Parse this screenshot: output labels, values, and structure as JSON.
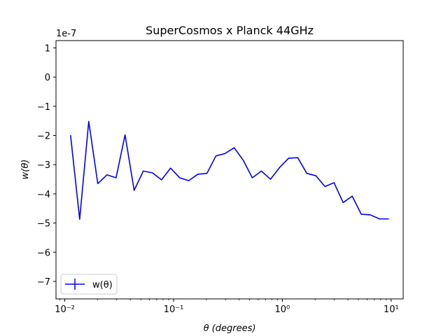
{
  "chart_data": {
    "type": "line",
    "title": "SuperCosmos x Planck 44GHz",
    "xlabel": "θ (degrees)",
    "ylabel": "w(θ)",
    "y_offset_text": "1e-7",
    "x_scale": "log",
    "xlim": [
      0.0083,
      12.9
    ],
    "ylim": [
      -7.6,
      1.25
    ],
    "x_ticks": [
      {
        "value": 0.01,
        "label": "10⁻²"
      },
      {
        "value": 0.1,
        "label": "10⁻¹"
      },
      {
        "value": 1,
        "label": "10⁰"
      },
      {
        "value": 10,
        "label": "10¹"
      }
    ],
    "y_ticks": [
      {
        "value": 1,
        "label": "1"
      },
      {
        "value": 0,
        "label": "0"
      },
      {
        "value": -1,
        "label": "−1"
      },
      {
        "value": -2,
        "label": "−2"
      },
      {
        "value": -3,
        "label": "−3"
      },
      {
        "value": -4,
        "label": "−4"
      },
      {
        "value": -5,
        "label": "−5"
      },
      {
        "value": -6,
        "label": "−6"
      },
      {
        "value": -7,
        "label": "−7"
      }
    ],
    "grid": false,
    "legend_position": "lower-left",
    "series": [
      {
        "name": "w(θ)",
        "color": "#0000ff",
        "x": [
          0.0113,
          0.0137,
          0.0166,
          0.0201,
          0.0244,
          0.0296,
          0.0358,
          0.0434,
          0.0527,
          0.0638,
          0.0774,
          0.0938,
          0.1137,
          0.1378,
          0.167,
          0.2024,
          0.2453,
          0.2973,
          0.3603,
          0.4367,
          0.5292,
          0.6414,
          0.7774,
          0.9421,
          1.1418,
          1.3838,
          1.6771,
          2.0326,
          2.4634,
          2.9855,
          3.6183,
          4.3852,
          5.3146,
          6.441,
          7.8062,
          9.4606
        ],
        "y": [
          -2.0,
          -4.87,
          -1.52,
          -3.65,
          -3.35,
          -3.45,
          -1.98,
          -3.88,
          -3.22,
          -3.28,
          -3.52,
          -3.12,
          -3.45,
          -3.55,
          -3.33,
          -3.3,
          -2.7,
          -2.62,
          -2.42,
          -2.85,
          -3.45,
          -3.22,
          -3.5,
          -3.1,
          -2.78,
          -2.76,
          -3.3,
          -3.38,
          -3.75,
          -3.62,
          -4.3,
          -4.08,
          -4.7,
          -4.72,
          -4.86,
          -4.86
        ]
      }
    ]
  }
}
